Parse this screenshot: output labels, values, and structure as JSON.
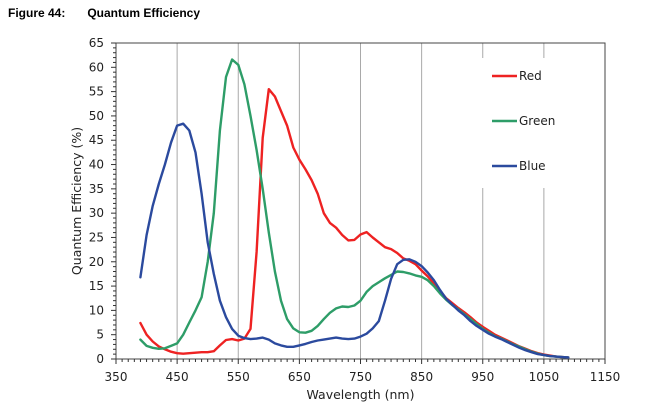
{
  "figure": {
    "number": "Figure 44:",
    "title": "Quantum Efficiency"
  },
  "chart_data": {
    "type": "line",
    "title": "Quantum Efficiency",
    "xlabel": "Wavelength (nm)",
    "ylabel": "Quantum Efficiency (%)",
    "xlim": [
      350,
      1150
    ],
    "ylim": [
      0,
      65
    ],
    "xticks": [
      350,
      450,
      550,
      650,
      750,
      850,
      950,
      1050,
      1150
    ],
    "yticks": [
      0,
      5,
      10,
      15,
      20,
      25,
      30,
      35,
      40,
      45,
      50,
      55,
      60,
      65
    ],
    "x_minor_step": 10,
    "y_minor_step": 1,
    "grid": {
      "x": true,
      "y": false
    },
    "legend_position": "top-right",
    "series": [
      {
        "name": "Red",
        "color": "#ee2222",
        "points": [
          [
            390,
            7.4
          ],
          [
            400,
            5
          ],
          [
            410,
            3.6
          ],
          [
            420,
            2.6
          ],
          [
            430,
            2
          ],
          [
            440,
            1.5
          ],
          [
            450,
            1.2
          ],
          [
            460,
            1.1
          ],
          [
            470,
            1.2
          ],
          [
            480,
            1.3
          ],
          [
            490,
            1.4
          ],
          [
            500,
            1.4
          ],
          [
            510,
            1.6
          ],
          [
            520,
            2.8
          ],
          [
            530,
            3.9
          ],
          [
            540,
            4.1
          ],
          [
            550,
            3.8
          ],
          [
            560,
            4.2
          ],
          [
            570,
            6.2
          ],
          [
            580,
            22
          ],
          [
            590,
            45.5
          ],
          [
            600,
            55.5
          ],
          [
            610,
            54
          ],
          [
            620,
            51
          ],
          [
            630,
            48
          ],
          [
            640,
            43.5
          ],
          [
            650,
            41
          ],
          [
            660,
            39
          ],
          [
            670,
            36.8
          ],
          [
            680,
            34
          ],
          [
            690,
            30
          ],
          [
            700,
            28
          ],
          [
            710,
            27
          ],
          [
            720,
            25.5
          ],
          [
            730,
            24.4
          ],
          [
            740,
            24.5
          ],
          [
            750,
            25.6
          ],
          [
            760,
            26.1
          ],
          [
            770,
            25
          ],
          [
            780,
            24
          ],
          [
            790,
            23
          ],
          [
            800,
            22.6
          ],
          [
            810,
            21.8
          ],
          [
            820,
            20.7
          ],
          [
            830,
            20.2
          ],
          [
            840,
            19.5
          ],
          [
            850,
            18.2
          ],
          [
            860,
            17
          ],
          [
            870,
            15.5
          ],
          [
            880,
            14
          ],
          [
            890,
            12.5
          ],
          [
            900,
            11.5
          ],
          [
            910,
            10.5
          ],
          [
            920,
            9.6
          ],
          [
            930,
            8.6
          ],
          [
            940,
            7.5
          ],
          [
            950,
            6.6
          ],
          [
            960,
            5.8
          ],
          [
            970,
            5
          ],
          [
            980,
            4.4
          ],
          [
            990,
            3.8
          ],
          [
            1000,
            3.2
          ],
          [
            1010,
            2.6
          ],
          [
            1020,
            2.1
          ],
          [
            1030,
            1.6
          ],
          [
            1040,
            1.2
          ],
          [
            1050,
            0.9
          ],
          [
            1060,
            0.7
          ],
          [
            1070,
            0.5
          ],
          [
            1080,
            0.4
          ],
          [
            1090,
            0.3
          ]
        ]
      },
      {
        "name": "Green",
        "color": "#2e9d68",
        "points": [
          [
            390,
            4
          ],
          [
            400,
            2.7
          ],
          [
            410,
            2.3
          ],
          [
            420,
            2.1
          ],
          [
            430,
            2.2
          ],
          [
            440,
            2.7
          ],
          [
            450,
            3.2
          ],
          [
            460,
            5
          ],
          [
            470,
            7.5
          ],
          [
            480,
            10
          ],
          [
            490,
            12.7
          ],
          [
            500,
            20
          ],
          [
            510,
            30
          ],
          [
            520,
            47
          ],
          [
            530,
            58
          ],
          [
            540,
            61.6
          ],
          [
            550,
            60.5
          ],
          [
            560,
            56.5
          ],
          [
            570,
            50
          ],
          [
            580,
            43
          ],
          [
            590,
            35
          ],
          [
            600,
            26
          ],
          [
            610,
            18
          ],
          [
            620,
            12
          ],
          [
            630,
            8.2
          ],
          [
            640,
            6.3
          ],
          [
            650,
            5.5
          ],
          [
            660,
            5.4
          ],
          [
            670,
            5.8
          ],
          [
            680,
            6.8
          ],
          [
            690,
            8.2
          ],
          [
            700,
            9.5
          ],
          [
            710,
            10.4
          ],
          [
            720,
            10.8
          ],
          [
            730,
            10.7
          ],
          [
            740,
            11
          ],
          [
            750,
            12
          ],
          [
            760,
            13.8
          ],
          [
            770,
            15
          ],
          [
            780,
            15.8
          ],
          [
            790,
            16.6
          ],
          [
            800,
            17.3
          ],
          [
            810,
            18
          ],
          [
            820,
            17.9
          ],
          [
            830,
            17.6
          ],
          [
            840,
            17.2
          ],
          [
            850,
            16.9
          ],
          [
            860,
            16.2
          ],
          [
            870,
            15
          ],
          [
            880,
            13.5
          ],
          [
            890,
            12.2
          ],
          [
            900,
            11.1
          ],
          [
            910,
            10.2
          ],
          [
            920,
            9.2
          ],
          [
            930,
            8.2
          ],
          [
            940,
            7.2
          ],
          [
            950,
            6.2
          ],
          [
            960,
            5.4
          ],
          [
            970,
            4.7
          ],
          [
            980,
            4.2
          ],
          [
            990,
            3.6
          ],
          [
            1000,
            3
          ],
          [
            1010,
            2.5
          ],
          [
            1020,
            2
          ],
          [
            1030,
            1.5
          ],
          [
            1040,
            1.1
          ],
          [
            1050,
            0.8
          ],
          [
            1060,
            0.6
          ],
          [
            1070,
            0.5
          ],
          [
            1080,
            0.4
          ],
          [
            1090,
            0.3
          ]
        ]
      },
      {
        "name": "Blue",
        "color": "#2b4a9e",
        "points": [
          [
            390,
            16.8
          ],
          [
            400,
            25.5
          ],
          [
            410,
            31.5
          ],
          [
            420,
            36
          ],
          [
            430,
            40
          ],
          [
            440,
            44.5
          ],
          [
            450,
            48
          ],
          [
            460,
            48.4
          ],
          [
            470,
            47
          ],
          [
            480,
            42.5
          ],
          [
            490,
            34
          ],
          [
            500,
            24
          ],
          [
            510,
            17.5
          ],
          [
            520,
            12
          ],
          [
            530,
            8.6
          ],
          [
            540,
            6.2
          ],
          [
            550,
            4.8
          ],
          [
            560,
            4.3
          ],
          [
            570,
            4.1
          ],
          [
            580,
            4.2
          ],
          [
            590,
            4.4
          ],
          [
            600,
            4
          ],
          [
            610,
            3.2
          ],
          [
            620,
            2.8
          ],
          [
            630,
            2.5
          ],
          [
            640,
            2.5
          ],
          [
            650,
            2.8
          ],
          [
            660,
            3.1
          ],
          [
            670,
            3.5
          ],
          [
            680,
            3.8
          ],
          [
            690,
            4
          ],
          [
            700,
            4.2
          ],
          [
            710,
            4.4
          ],
          [
            720,
            4.2
          ],
          [
            730,
            4.1
          ],
          [
            740,
            4.2
          ],
          [
            750,
            4.6
          ],
          [
            760,
            5.2
          ],
          [
            770,
            6.3
          ],
          [
            780,
            7.8
          ],
          [
            790,
            12
          ],
          [
            800,
            16.5
          ],
          [
            810,
            19.5
          ],
          [
            820,
            20.4
          ],
          [
            830,
            20.5
          ],
          [
            840,
            20
          ],
          [
            850,
            19.1
          ],
          [
            860,
            17.8
          ],
          [
            870,
            16.2
          ],
          [
            880,
            14.2
          ],
          [
            890,
            12.4
          ],
          [
            900,
            11.2
          ],
          [
            910,
            10
          ],
          [
            920,
            9
          ],
          [
            930,
            7.8
          ],
          [
            940,
            6.8
          ],
          [
            950,
            6
          ],
          [
            960,
            5.2
          ],
          [
            970,
            4.6
          ],
          [
            980,
            4.1
          ],
          [
            990,
            3.5
          ],
          [
            1000,
            2.9
          ],
          [
            1010,
            2.3
          ],
          [
            1020,
            1.8
          ],
          [
            1030,
            1.4
          ],
          [
            1040,
            1
          ],
          [
            1050,
            0.8
          ],
          [
            1060,
            0.6
          ],
          [
            1070,
            0.5
          ],
          [
            1080,
            0.4
          ],
          [
            1090,
            0.3
          ]
        ]
      }
    ]
  }
}
